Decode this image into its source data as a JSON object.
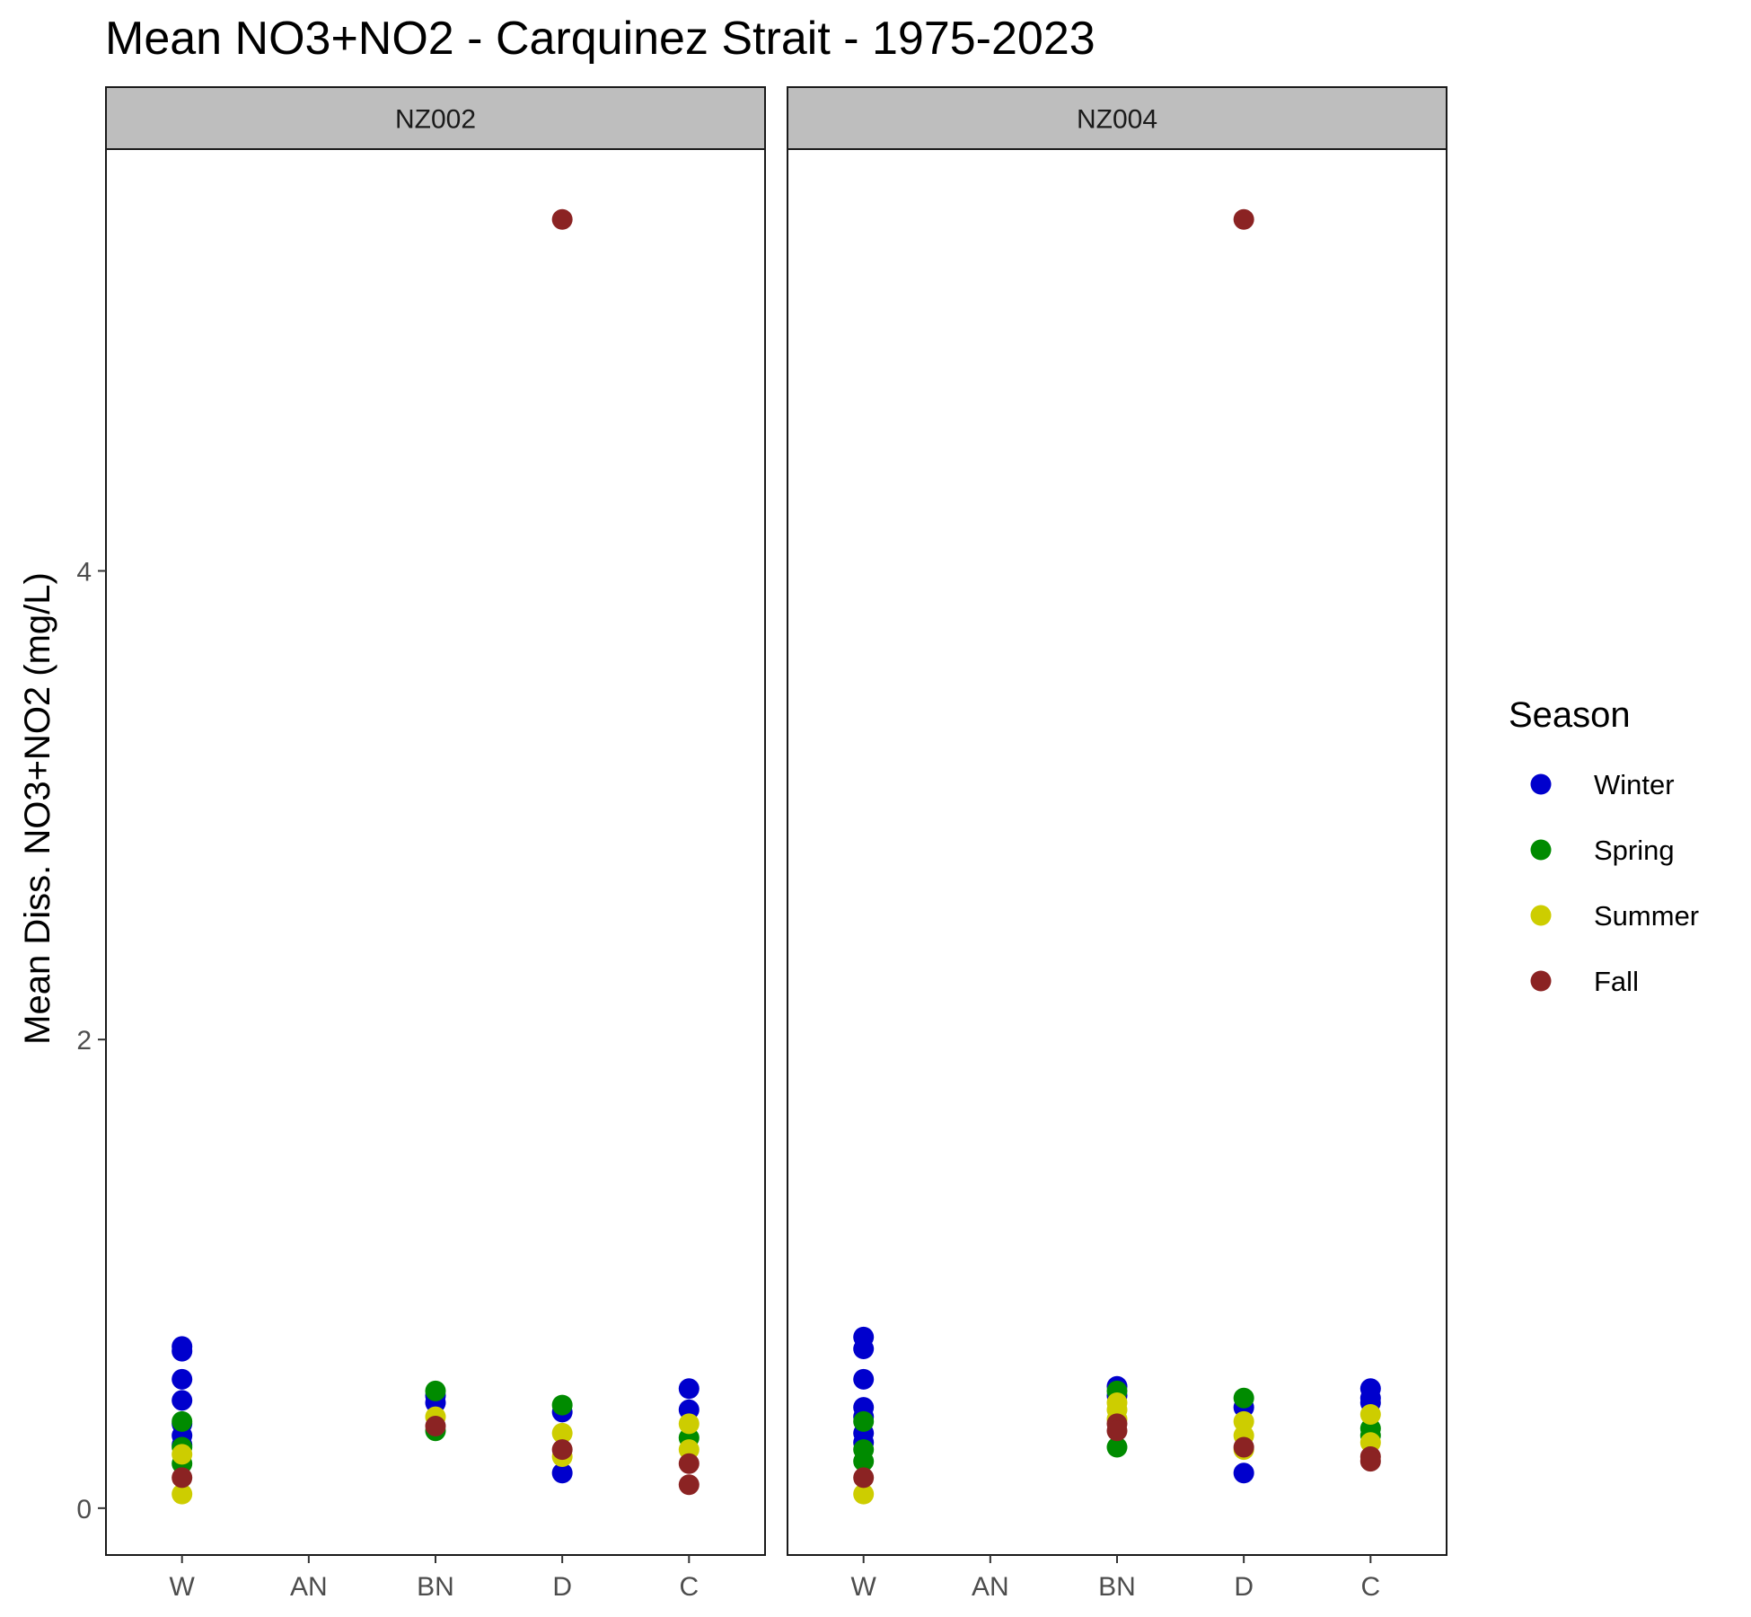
{
  "chart_data": {
    "type": "scatter",
    "title": "Mean NO3+NO2 - Carquinez Strait - 1975-2023",
    "ylabel": "Mean Diss. NO3+NO2 (mg/L)",
    "xlabel": "",
    "categories": [
      "W",
      "AN",
      "BN",
      "D",
      "C"
    ],
    "ylim": [
      -0.2,
      5.8
    ],
    "yticks": [
      0,
      2,
      4
    ],
    "grid": false,
    "legend": {
      "title": "Season",
      "position": "right",
      "entries": [
        {
          "name": "Winter",
          "color": "#0000cd"
        },
        {
          "name": "Spring",
          "color": "#008b00"
        },
        {
          "name": "Summer",
          "color": "#cdcd00"
        },
        {
          "name": "Fall",
          "color": "#8b2323"
        }
      ]
    },
    "panels": [
      {
        "name": "NZ002",
        "series": [
          {
            "name": "Winter",
            "points": [
              {
                "x": "W",
                "y": 0.69
              },
              {
                "x": "W",
                "y": 0.67
              },
              {
                "x": "W",
                "y": 0.55
              },
              {
                "x": "W",
                "y": 0.46
              },
              {
                "x": "W",
                "y": 0.36
              },
              {
                "x": "W",
                "y": 0.31
              },
              {
                "x": "W",
                "y": 0.27
              },
              {
                "x": "BN",
                "y": 0.48
              },
              {
                "x": "BN",
                "y": 0.45
              },
              {
                "x": "D",
                "y": 0.41
              },
              {
                "x": "D",
                "y": 0.15
              },
              {
                "x": "C",
                "y": 0.51
              },
              {
                "x": "C",
                "y": 0.42
              }
            ]
          },
          {
            "name": "Spring",
            "points": [
              {
                "x": "W",
                "y": 0.37
              },
              {
                "x": "W",
                "y": 0.26
              },
              {
                "x": "W",
                "y": 0.19
              },
              {
                "x": "BN",
                "y": 0.5
              },
              {
                "x": "BN",
                "y": 0.33
              },
              {
                "x": "D",
                "y": 0.44
              },
              {
                "x": "C",
                "y": 0.3
              }
            ]
          },
          {
            "name": "Summer",
            "points": [
              {
                "x": "W",
                "y": 0.23
              },
              {
                "x": "W",
                "y": 0.06
              },
              {
                "x": "BN",
                "y": 0.39
              },
              {
                "x": "D",
                "y": 0.32
              },
              {
                "x": "D",
                "y": 0.22
              },
              {
                "x": "C",
                "y": 0.36
              },
              {
                "x": "C",
                "y": 0.25
              }
            ]
          },
          {
            "name": "Fall",
            "points": [
              {
                "x": "W",
                "y": 0.13
              },
              {
                "x": "BN",
                "y": 0.35
              },
              {
                "x": "D",
                "y": 5.5
              },
              {
                "x": "D",
                "y": 0.25
              },
              {
                "x": "C",
                "y": 0.19
              },
              {
                "x": "C",
                "y": 0.1
              }
            ]
          }
        ]
      },
      {
        "name": "NZ004",
        "series": [
          {
            "name": "Winter",
            "points": [
              {
                "x": "W",
                "y": 0.73
              },
              {
                "x": "W",
                "y": 0.68
              },
              {
                "x": "W",
                "y": 0.55
              },
              {
                "x": "W",
                "y": 0.43
              },
              {
                "x": "W",
                "y": 0.39
              },
              {
                "x": "W",
                "y": 0.32
              },
              {
                "x": "W",
                "y": 0.28
              },
              {
                "x": "BN",
                "y": 0.52
              },
              {
                "x": "BN",
                "y": 0.48
              },
              {
                "x": "D",
                "y": 0.43
              },
              {
                "x": "D",
                "y": 0.15
              },
              {
                "x": "C",
                "y": 0.51
              },
              {
                "x": "C",
                "y": 0.47
              },
              {
                "x": "C",
                "y": 0.45
              }
            ]
          },
          {
            "name": "Spring",
            "points": [
              {
                "x": "W",
                "y": 0.37
              },
              {
                "x": "W",
                "y": 0.25
              },
              {
                "x": "W",
                "y": 0.2
              },
              {
                "x": "BN",
                "y": 0.5
              },
              {
                "x": "BN",
                "y": 0.26
              },
              {
                "x": "D",
                "y": 0.47
              },
              {
                "x": "C",
                "y": 0.34
              },
              {
                "x": "C",
                "y": 0.31
              }
            ]
          },
          {
            "name": "Summer",
            "points": [
              {
                "x": "W",
                "y": 0.06
              },
              {
                "x": "BN",
                "y": 0.45
              },
              {
                "x": "BN",
                "y": 0.42
              },
              {
                "x": "BN",
                "y": 0.38
              },
              {
                "x": "D",
                "y": 0.37
              },
              {
                "x": "D",
                "y": 0.31
              },
              {
                "x": "D",
                "y": 0.25
              },
              {
                "x": "C",
                "y": 0.4
              },
              {
                "x": "C",
                "y": 0.28
              }
            ]
          },
          {
            "name": "Fall",
            "points": [
              {
                "x": "W",
                "y": 0.13
              },
              {
                "x": "BN",
                "y": 0.36
              },
              {
                "x": "BN",
                "y": 0.33
              },
              {
                "x": "D",
                "y": 5.5
              },
              {
                "x": "D",
                "y": 0.26
              },
              {
                "x": "C",
                "y": 0.22
              },
              {
                "x": "C",
                "y": 0.2
              }
            ]
          }
        ]
      }
    ]
  }
}
